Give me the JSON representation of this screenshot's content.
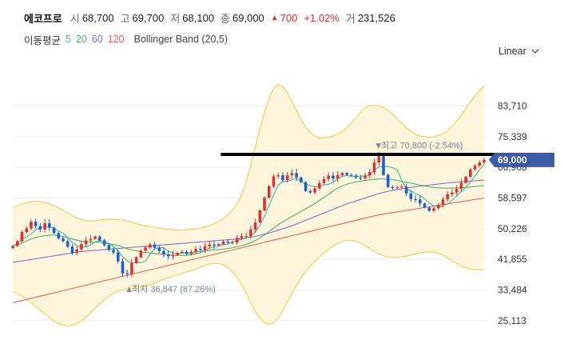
{
  "header": {
    "name": "에코프로",
    "open_label": "시",
    "open": "68,700",
    "high_label": "고",
    "high": "69,700",
    "low_label": "저",
    "low": "68,100",
    "close_label": "종",
    "close": "69,000",
    "change": "700",
    "change_pct": "+1.02%",
    "volume_label": "거",
    "volume": "231,526"
  },
  "legend": {
    "ma_title": "이동평균",
    "periods": [
      "5",
      "20",
      "60",
      "120"
    ],
    "bollinger": "Bollinger Band (20,5)"
  },
  "scale_mode": "Linear",
  "colors": {
    "up": "#e03131",
    "down": "#1c5fd6",
    "ma5": "#36b9a6",
    "ma20": "#48b36a",
    "ma60": "#7b6fcf",
    "ma120": "#e8645a",
    "bollinger_line": "#f2d35a",
    "bollinger_fill": "#fdf6dc",
    "price_tag": "#3b5aa8"
  },
  "chart_data": {
    "type": "candlestick",
    "y_ticks": [
      "83,710",
      "75,339",
      "66,968",
      "58,597",
      "50,226",
      "41,855",
      "33,484",
      "25,113"
    ],
    "ylim": [
      22000,
      93000
    ],
    "last_price": "69,000",
    "high_annotation": "최고 70,800 (-2.54%)",
    "low_annotation": "최저 36,847 (87.26%)",
    "high_value": 70800,
    "low_value": 36847,
    "overlay_line_value": 70500,
    "closes": [
      45500,
      46800,
      49300,
      50300,
      52100,
      50900,
      50000,
      51700,
      50500,
      49000,
      47600,
      46800,
      45300,
      43600,
      44600,
      46000,
      47000,
      47400,
      48100,
      47000,
      45700,
      44400,
      43700,
      41300,
      38000,
      37800,
      40800,
      42400,
      44200,
      45100,
      45900,
      45000,
      44100,
      43100,
      42700,
      43000,
      43600,
      43900,
      43300,
      43900,
      44700,
      44400,
      45400,
      45900,
      45600,
      46000,
      46700,
      46400,
      46400,
      47700,
      48200,
      48200,
      50000,
      51900,
      55200,
      58700,
      61800,
      64500,
      64800,
      63500,
      64800,
      65400,
      64200,
      62900,
      60500,
      60100,
      61200,
      62700,
      63800,
      64700,
      63900,
      64800,
      65400,
      64900,
      64700,
      64200,
      64000,
      64700,
      65700,
      68300,
      70000,
      64900,
      61600,
      61300,
      61500,
      61700,
      59800,
      58300,
      58200,
      57100,
      56000,
      55100,
      55800,
      56700,
      58200,
      59600,
      60100,
      61100,
      62700,
      64400,
      66400,
      67400,
      68300,
      69000
    ],
    "ma5": [
      45500,
      46150,
      47200,
      47980,
      48800,
      49880,
      50460,
      50740,
      50620,
      50400,
      49560,
      48920,
      47840,
      46460,
      45580,
      45260,
      45300,
      45720,
      46620,
      46900,
      46840,
      46120,
      45380,
      44160,
      42600,
      41400,
      40860,
      41020,
      40960,
      41300,
      43240,
      44720,
      45060,
      45000,
      44160,
      43600,
      43300,
      43600,
      43620,
      43600,
      43820,
      44060,
      44340,
      44900,
      45220,
      45420,
      45920,
      46000,
      46620,
      46920,
      47360,
      47640,
      48200,
      49280,
      51100,
      53600,
      56480,
      59400,
      62100,
      63100,
      63160,
      63580,
      63900,
      63200,
      62460,
      61940,
      61620,
      61620,
      62150,
      62340,
      62880,
      63840,
      64500,
      64700,
      64540,
      64560,
      64560,
      64620,
      65050,
      66010,
      67160,
      67260,
      67150,
      66860,
      66300,
      63380,
      61200,
      60460,
      59800,
      59280,
      58360,
      57300,
      56460,
      56220,
      56380,
      56940,
      57980,
      59100,
      60300,
      61580,
      62940,
      64600,
      66300,
      67740
    ],
    "ma20": [
      45500,
      45800,
      46300,
      46900,
      47400,
      47800,
      48100,
      48300,
      48400,
      48500,
      48300,
      48100,
      47700,
      47400,
      47100,
      46800,
      46700,
      46600,
      46600,
      46500,
      46300,
      46100,
      45900,
      45600,
      45200,
      44700,
      44400,
      44200,
      43900,
      43700,
      43600,
      43400,
      43300,
      43200,
      43100,
      42950,
      42900,
      42900,
      42950,
      43100,
      43300,
      43700,
      44100,
      44300,
      44500,
      44500,
      44650,
      44800,
      45000,
      45250,
      45550,
      45900,
      46400,
      46950,
      47700,
      48500,
      49450,
      50400,
      51300,
      52050,
      52800,
      53600,
      54200,
      54900,
      55600,
      56300,
      57100,
      57900,
      58800,
      59600,
      60500,
      61300,
      61900,
      62350,
      62700,
      63000,
      63200,
      63400,
      63550,
      63700,
      63800,
      63800,
      63700,
      63600,
      63400,
      63100,
      62900,
      62700,
      62400,
      62100,
      61900,
      61650,
      61450,
      61400,
      61300,
      61250,
      61300,
      61350,
      61350,
      61500,
      61600,
      61750,
      61850,
      61950
    ],
    "ma60": [
      41000,
      41200,
      41400,
      41600,
      41800,
      42000,
      42200,
      42400,
      42600,
      42800,
      43000,
      43200,
      43400,
      43600,
      43800,
      44000,
      44100,
      44200,
      44300,
      44400,
      44500,
      44600,
      44700,
      44800,
      44900,
      45000,
      45100,
      45200,
      45300,
      45400,
      45500,
      45600,
      45700,
      45800,
      45900,
      46000,
      46100,
      46200,
      46300,
      46400,
      46500,
      46600,
      46700,
      46800,
      46900,
      47000,
      47100,
      47200,
      47300,
      47400,
      47500,
      47700,
      47900,
      48100,
      48400,
      48700,
      49000,
      49400,
      49800,
      50200,
      50600,
      51000,
      51500,
      52000,
      52500,
      53000,
      53500,
      54000,
      54500,
      55000,
      55500,
      56000,
      56500,
      57000,
      57400,
      57800,
      58200,
      58600,
      59000,
      59400,
      59800,
      60100,
      60400,
      60700,
      60900,
      61100,
      61300,
      61500,
      61650,
      61800,
      61950,
      62100,
      62250,
      62400,
      62550,
      62700,
      62800,
      62900,
      63000,
      63100,
      63200,
      63300,
      63400,
      63500
    ],
    "ma120": [
      30000,
      30300,
      30600,
      30900,
      31200,
      31500,
      31800,
      32100,
      32400,
      32700,
      33000,
      33300,
      33600,
      33900,
      34200,
      34500,
      34800,
      35100,
      35400,
      35700,
      36000,
      36300,
      36600,
      36900,
      37200,
      37500,
      37800,
      38100,
      38400,
      38700,
      39000,
      39300,
      39600,
      39900,
      40200,
      40500,
      40800,
      41100,
      41400,
      41700,
      42000,
      42300,
      42600,
      42900,
      43200,
      43500,
      43800,
      44100,
      44400,
      44700,
      45000,
      45300,
      45600,
      45900,
      46200,
      46500,
      46800,
      47100,
      47400,
      47700,
      48000,
      48300,
      48600,
      48900,
      49200,
      49500,
      49800,
      50100,
      50400,
      50700,
      51000,
      51300,
      51600,
      51900,
      52200,
      52500,
      52800,
      53100,
      53400,
      53700,
      54000,
      54200,
      54400,
      54600,
      54800,
      55000,
      55200,
      55400,
      55600,
      55800,
      56000,
      56200,
      56400,
      56600,
      56800,
      57000,
      57200,
      57400,
      57600,
      57800,
      58000,
      58200,
      58400,
      58600
    ],
    "bb_upper": [
      56000,
      56500,
      57000,
      57300,
      57600,
      57700,
      57600,
      57400,
      57000,
      56500,
      55900,
      55200,
      54500,
      53800,
      53200,
      52700,
      52400,
      52300,
      52400,
      52600,
      52700,
      52800,
      52800,
      52700,
      52600,
      52300,
      52000,
      51600,
      51300,
      51000,
      50800,
      50600,
      50400,
      50200,
      50000,
      49900,
      49800,
      49800,
      49900,
      50000,
      50200,
      50400,
      50700,
      51100,
      51600,
      52200,
      53000,
      54000,
      55300,
      57000,
      59500,
      63000,
      67500,
      72500,
      77500,
      82000,
      86000,
      88500,
      89500,
      89000,
      87300,
      85000,
      82500,
      80000,
      78000,
      76500,
      75500,
      75000,
      75000,
      75200,
      75500,
      76000,
      76800,
      77800,
      79000,
      80500,
      82000,
      83200,
      83800,
      84000,
      83800,
      83300,
      82500,
      81500,
      80300,
      79000,
      77800,
      76800,
      76000,
      75500,
      75300,
      75200,
      75300,
      75600,
      76200,
      77000,
      78200,
      79600,
      81200,
      83000,
      84800,
      86500,
      88000,
      89200
    ],
    "bb_lower": [
      33000,
      32500,
      31800,
      31000,
      30000,
      29000,
      28000,
      27000,
      26000,
      25000,
      24300,
      23800,
      23600,
      23800,
      24300,
      25000,
      26000,
      27200,
      28500,
      29700,
      30800,
      31800,
      32600,
      33200,
      33600,
      33800,
      33900,
      34000,
      34200,
      34500,
      34900,
      35400,
      35900,
      36400,
      36800,
      37200,
      37600,
      38000,
      38400,
      38800,
      39200,
      39700,
      40200,
      40600,
      40800,
      40700,
      40300,
      39600,
      38500,
      37000,
      35000,
      32600,
      30000,
      27600,
      25800,
      24500,
      24100,
      24500,
      25800,
      27800,
      30200,
      32600,
      34800,
      36800,
      38500,
      40000,
      41300,
      42500,
      43600,
      44600,
      45500,
      46200,
      46700,
      47000,
      47000,
      46800,
      46300,
      45600,
      44800,
      44000,
      43300,
      42800,
      42500,
      42400,
      42400,
      42500,
      42700,
      43000,
      43300,
      43600,
      43800,
      43900,
      43800,
      43500,
      43000,
      42300,
      41500,
      40700,
      40000,
      39500,
      39200,
      39000,
      39000,
      39100
    ]
  }
}
